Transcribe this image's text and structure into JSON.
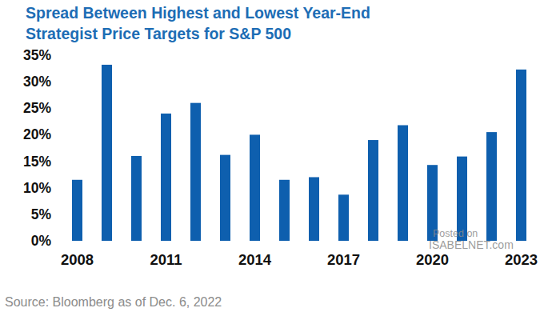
{
  "chart_data": {
    "type": "bar",
    "title": [
      "Spread Between Highest and Lowest Year-End",
      "Strategist Price Targets for S&P 500"
    ],
    "categories": [
      "2008",
      null,
      null,
      "2011",
      null,
      null,
      "2014",
      null,
      null,
      "2017",
      null,
      null,
      "2020",
      null,
      null,
      "2023"
    ],
    "values": [
      11.5,
      33.2,
      16,
      24,
      26,
      16.2,
      20,
      11.5,
      12,
      8.7,
      19,
      21.8,
      14.3,
      15.9,
      20.5,
      32.3
    ],
    "color": "#0e5fae",
    "ylim": [
      0,
      35
    ],
    "yticks": [
      {
        "value": 0,
        "label": "0%"
      },
      {
        "value": 5,
        "label": "5%"
      },
      {
        "value": 10,
        "label": "10%"
      },
      {
        "value": 15,
        "label": "15%"
      },
      {
        "value": 20,
        "label": "20%"
      },
      {
        "value": 25,
        "label": "25%"
      },
      {
        "value": 30,
        "label": "30%"
      },
      {
        "value": 35,
        "label": "35%"
      }
    ],
    "grid": false,
    "source": "Source: Bloomberg as of Dec. 6, 2022",
    "annotations": [
      "Posted on",
      "ISABELNET.com"
    ]
  }
}
